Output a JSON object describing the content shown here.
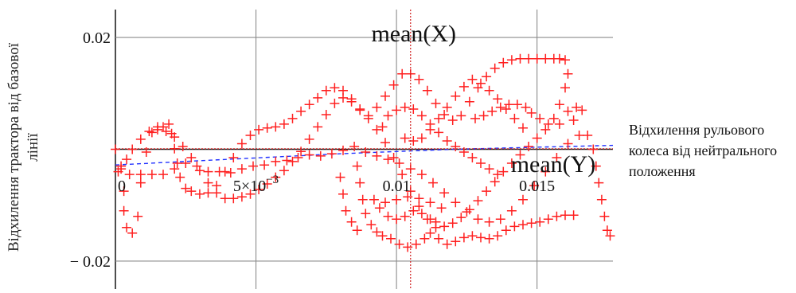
{
  "chart_data": {
    "type": "scatter",
    "title": "",
    "ylabel": "Відхилення трактора від базової лінії",
    "xlabel": "Відхилення рульового колеса від нейтрального положення",
    "xlim": [
      0,
      0.0177
    ],
    "ylim": [
      -0.025,
      0.025
    ],
    "y_ticks": [
      {
        "value": 0.02,
        "label": "0.02"
      },
      {
        "value": -0.02,
        "label": "− 0.02"
      }
    ],
    "x_ticks": [
      {
        "value": 0,
        "label": "0"
      },
      {
        "value": 0.005,
        "label": "5×10",
        "exp": "−3"
      },
      {
        "value": 0.01,
        "label": "0.01"
      },
      {
        "value": 0.015,
        "label": "0.015"
      }
    ],
    "grid": true,
    "mean_x": {
      "value": 0.0105,
      "label": "mean(X)"
    },
    "mean_y": {
      "value": 0.0001,
      "label": "mean(Y)"
    },
    "colors": {
      "points": "#ff2020",
      "fit": "#2030ff",
      "mean": "#d02020",
      "grid": "#8c8c8c",
      "axis": "#222222"
    },
    "series": [
      {
        "points": [
          [
            0.0,
            0.0
          ],
          [
            0.0002,
            -0.0035
          ],
          [
            0.0003,
            -0.0075
          ],
          [
            0.0003,
            -0.011
          ],
          [
            0.0004,
            -0.014
          ],
          [
            0.0006,
            -0.015
          ],
          [
            0.0008,
            -0.012
          ],
          [
            0.0009,
            -0.006
          ],
          [
            0.0011,
            -0.0005
          ],
          [
            0.0013,
            0.003
          ],
          [
            0.0015,
            0.004
          ],
          [
            0.0017,
            0.004
          ],
          [
            0.0019,
            0.0045
          ],
          [
            0.002,
            0.0028
          ],
          [
            0.0021,
            0.0001
          ],
          [
            0.0022,
            -0.0025
          ],
          [
            0.0023,
            -0.005
          ],
          [
            0.0025,
            -0.007
          ],
          [
            0.0027,
            -0.0075
          ],
          [
            0.003,
            -0.008
          ],
          [
            0.0033,
            -0.0078
          ],
          [
            0.0036,
            -0.0065
          ],
          [
            0.0039,
            -0.004
          ],
          [
            0.0042,
            -0.0015
          ],
          [
            0.0045,
            0.001
          ],
          [
            0.0048,
            0.0025
          ],
          [
            0.0051,
            0.0035
          ],
          [
            0.0054,
            0.0038
          ],
          [
            0.0057,
            0.004
          ],
          [
            0.006,
            0.0045
          ],
          [
            0.0063,
            0.0055
          ],
          [
            0.0066,
            0.0068
          ],
          [
            0.0069,
            0.008
          ],
          [
            0.0072,
            0.0092
          ],
          [
            0.0075,
            0.0105
          ],
          [
            0.0078,
            0.011
          ],
          [
            0.0081,
            0.0105
          ],
          [
            0.0084,
            0.009
          ],
          [
            0.0087,
            0.007
          ],
          [
            0.009,
            0.006
          ],
          [
            0.0093,
            0.0075
          ],
          [
            0.0096,
            0.0095
          ],
          [
            0.0099,
            0.0115
          ],
          [
            0.0102,
            0.0135
          ],
          [
            0.0105,
            0.0135
          ],
          [
            0.0108,
            0.0125
          ],
          [
            0.0111,
            0.0105
          ],
          [
            0.0114,
            0.0082
          ],
          [
            0.0117,
            0.0062
          ],
          [
            0.012,
            0.0052
          ],
          [
            0.0123,
            0.006
          ],
          [
            0.0126,
            0.0085
          ],
          [
            0.0129,
            0.011
          ],
          [
            0.0132,
            0.013
          ],
          [
            0.0135,
            0.0145
          ],
          [
            0.0138,
            0.0155
          ],
          [
            0.0141,
            0.016
          ],
          [
            0.0144,
            0.0162
          ],
          [
            0.0147,
            0.0162
          ],
          [
            0.015,
            0.0162
          ],
          [
            0.0153,
            0.0162
          ],
          [
            0.0156,
            0.0162
          ],
          [
            0.0158,
            0.0162
          ],
          [
            0.016,
            0.016
          ],
          [
            0.0161,
            0.0135
          ],
          [
            0.016,
            0.011
          ],
          [
            0.0158,
            0.008
          ],
          [
            0.0156,
            0.0055
          ],
          [
            0.0153,
            0.0035
          ],
          [
            0.015,
            0.002
          ],
          [
            0.0147,
            0.0005
          ],
          [
            0.0144,
            -0.001
          ],
          [
            0.0141,
            -0.0025
          ],
          [
            0.0138,
            -0.004
          ],
          [
            0.0135,
            -0.0058
          ],
          [
            0.0132,
            -0.0075
          ],
          [
            0.0129,
            -0.0092
          ],
          [
            0.0126,
            -0.0108
          ],
          [
            0.0123,
            -0.0122
          ],
          [
            0.012,
            -0.0132
          ],
          [
            0.0117,
            -0.0138
          ],
          [
            0.0114,
            -0.014
          ],
          [
            0.0111,
            -0.0125
          ],
          [
            0.0108,
            -0.0102
          ],
          [
            0.0105,
            -0.0075
          ],
          [
            0.0102,
            -0.0045
          ],
          [
            0.0099,
            -0.0015
          ],
          [
            0.0096,
            0.0012
          ],
          [
            0.0093,
            0.0035
          ],
          [
            0.009,
            0.0055
          ],
          [
            0.0087,
            0.0072
          ],
          [
            0.0084,
            0.0085
          ],
          [
            0.0081,
            0.0092
          ],
          [
            0.0078,
            0.0082
          ],
          [
            0.0075,
            0.0062
          ],
          [
            0.0072,
            0.004
          ],
          [
            0.0069,
            0.0018
          ],
          [
            0.0066,
            -0.0004
          ],
          [
            0.0063,
            -0.0022
          ],
          [
            0.006,
            -0.0038
          ],
          [
            0.0057,
            -0.005
          ],
          [
            0.0054,
            -0.0062
          ],
          [
            0.0051,
            -0.0072
          ],
          [
            0.0048,
            -0.008
          ],
          [
            0.0045,
            -0.0085
          ],
          [
            0.0042,
            -0.0088
          ],
          [
            0.0039,
            -0.0088
          ],
          [
            0.0036,
            -0.0078
          ],
          [
            0.0033,
            -0.006
          ],
          [
            0.003,
            -0.0038
          ],
          [
            0.0027,
            -0.0015
          ],
          [
            0.0024,
            0.0005
          ],
          [
            0.0021,
            0.0022
          ],
          [
            0.0018,
            0.0032
          ],
          [
            0.0015,
            0.0035
          ],
          [
            0.0012,
            0.0032
          ],
          [
            0.0009,
            0.0018
          ],
          [
            0.0006,
            0.0
          ],
          [
            0.0004,
            -0.0018
          ],
          [
            0.0002,
            -0.003
          ],
          [
            0.0001,
            -0.004
          ],
          [
            0.0005,
            -0.0045
          ],
          [
            0.0009,
            -0.0045
          ],
          [
            0.0013,
            -0.0045
          ],
          [
            0.0017,
            -0.0045
          ],
          [
            0.0021,
            -0.0035
          ],
          [
            0.0025,
            -0.0025
          ],
          [
            0.0029,
            -0.003
          ],
          [
            0.0033,
            -0.004
          ],
          [
            0.0037,
            -0.004
          ],
          [
            0.0041,
            -0.0042
          ],
          [
            0.0045,
            -0.0035
          ],
          [
            0.0049,
            -0.003
          ],
          [
            0.0053,
            -0.0028
          ],
          [
            0.0057,
            -0.0022
          ],
          [
            0.0061,
            -0.002
          ],
          [
            0.0065,
            -0.0015
          ],
          [
            0.0069,
            -0.001
          ],
          [
            0.0073,
            -0.0012
          ],
          [
            0.0077,
            -0.0008
          ],
          [
            0.0081,
            -0.0002
          ],
          [
            0.0085,
            0.0005
          ],
          [
            0.0089,
            -0.0005
          ],
          [
            0.0093,
            -0.0012
          ],
          [
            0.0097,
            -0.0018
          ],
          [
            0.0101,
            -0.0025
          ],
          [
            0.0105,
            -0.0035
          ],
          [
            0.0109,
            -0.0045
          ],
          [
            0.0113,
            -0.006
          ],
          [
            0.0117,
            -0.0078
          ],
          [
            0.0121,
            -0.0095
          ],
          [
            0.0125,
            -0.0112
          ],
          [
            0.0129,
            -0.0125
          ],
          [
            0.0133,
            -0.013
          ],
          [
            0.0137,
            -0.0125
          ],
          [
            0.0141,
            -0.011
          ],
          [
            0.0145,
            -0.009
          ],
          [
            0.0149,
            -0.0065
          ],
          [
            0.0153,
            -0.004
          ],
          [
            0.0157,
            -0.0015
          ],
          [
            0.0161,
            0.001
          ],
          [
            0.0165,
            0.0025
          ],
          [
            0.0168,
            0.0025
          ],
          [
            0.017,
            0.0
          ],
          [
            0.0171,
            -0.003
          ],
          [
            0.0172,
            -0.006
          ],
          [
            0.0173,
            -0.009
          ],
          [
            0.0174,
            -0.012
          ],
          [
            0.0175,
            -0.0145
          ],
          [
            0.0176,
            -0.0155
          ],
          [
            0.0163,
            0.0052
          ],
          [
            0.0161,
            0.0068
          ],
          [
            0.0164,
            0.0075
          ],
          [
            0.0166,
            0.007
          ],
          [
            0.0158,
            0.0045
          ],
          [
            0.0154,
            0.0045
          ],
          [
            0.0151,
            0.0055
          ],
          [
            0.0148,
            0.0065
          ],
          [
            0.0146,
            0.0075
          ],
          [
            0.0143,
            0.008
          ],
          [
            0.014,
            0.008
          ],
          [
            0.0137,
            0.0075
          ],
          [
            0.0134,
            0.0068
          ],
          [
            0.0131,
            0.006
          ],
          [
            0.0128,
            0.0055
          ],
          [
            0.0086,
            -0.003
          ],
          [
            0.0087,
            -0.006
          ],
          [
            0.0088,
            -0.009
          ],
          [
            0.0089,
            -0.0115
          ],
          [
            0.0091,
            -0.0135
          ],
          [
            0.0093,
            -0.0148
          ],
          [
            0.0095,
            -0.0155
          ],
          [
            0.0098,
            -0.016
          ],
          [
            0.0101,
            -0.017
          ],
          [
            0.0104,
            -0.0175
          ],
          [
            0.0107,
            -0.017
          ],
          [
            0.011,
            -0.016
          ],
          [
            0.0112,
            -0.015
          ],
          [
            0.0115,
            -0.016
          ],
          [
            0.0118,
            -0.017
          ],
          [
            0.0121,
            -0.0165
          ],
          [
            0.0124,
            -0.0158
          ],
          [
            0.0127,
            -0.0155
          ],
          [
            0.013,
            -0.0158
          ],
          [
            0.0133,
            -0.016
          ],
          [
            0.0136,
            -0.0155
          ],
          [
            0.0139,
            -0.0145
          ],
          [
            0.0142,
            -0.0138
          ],
          [
            0.0145,
            -0.0135
          ],
          [
            0.0148,
            -0.0132
          ],
          [
            0.0151,
            -0.013
          ],
          [
            0.0154,
            -0.0125
          ],
          [
            0.0157,
            -0.012
          ],
          [
            0.016,
            -0.0118
          ],
          [
            0.0163,
            -0.0118
          ],
          [
            0.008,
            -0.005
          ],
          [
            0.0081,
            -0.008
          ],
          [
            0.0082,
            -0.011
          ],
          [
            0.0084,
            -0.013
          ],
          [
            0.0086,
            -0.0145
          ],
          [
            0.0095,
            0.004
          ],
          [
            0.0097,
            0.006
          ],
          [
            0.01,
            0.007
          ],
          [
            0.0103,
            0.0075
          ],
          [
            0.0106,
            0.0072
          ],
          [
            0.0109,
            0.006
          ],
          [
            0.0112,
            0.0045
          ],
          [
            0.0115,
            0.003
          ],
          [
            0.0118,
            0.0015
          ],
          [
            0.0121,
            0.0005
          ],
          [
            0.0124,
            -0.0005
          ],
          [
            0.0127,
            -0.0015
          ],
          [
            0.013,
            -0.0025
          ],
          [
            0.0133,
            -0.0035
          ],
          [
            0.0136,
            -0.0045
          ],
          [
            0.0103,
            0.002
          ],
          [
            0.0106,
            0.0015
          ],
          [
            0.0109,
            0.002
          ],
          [
            0.0112,
            0.0035
          ],
          [
            0.0115,
            0.0055
          ],
          [
            0.0118,
            0.0075
          ],
          [
            0.0121,
            0.0095
          ],
          [
            0.0124,
            0.0112
          ],
          [
            0.0127,
            0.0125
          ],
          [
            0.013,
            0.0118
          ],
          [
            0.0133,
            0.0105
          ],
          [
            0.0136,
            0.009
          ],
          [
            0.0139,
            0.0072
          ],
          [
            0.0142,
            0.0055
          ],
          [
            0.0145,
            0.0038
          ],
          [
            0.0092,
            -0.009
          ],
          [
            0.0094,
            -0.0105
          ],
          [
            0.0097,
            -0.012
          ],
          [
            0.01,
            -0.0125
          ],
          [
            0.0103,
            -0.012
          ],
          [
            0.0106,
            -0.011
          ],
          [
            0.0109,
            -0.0115
          ],
          [
            0.0112,
            -0.0125
          ],
          [
            0.0114,
            -0.013
          ],
          [
            0.0096,
            -0.0095
          ],
          [
            0.01,
            -0.009
          ],
          [
            0.0104,
            -0.0085
          ],
          [
            0.0108,
            -0.0088
          ],
          [
            0.0112,
            -0.0095
          ],
          [
            0.0116,
            -0.0105
          ]
        ]
      },
      {
        "fit": [
          [
            0.0,
            -0.0028
          ],
          [
            0.004,
            -0.0018
          ],
          [
            0.008,
            -0.0008
          ],
          [
            0.012,
            0.0
          ],
          [
            0.016,
            0.0005
          ],
          [
            0.0177,
            0.0007
          ]
        ]
      }
    ]
  }
}
